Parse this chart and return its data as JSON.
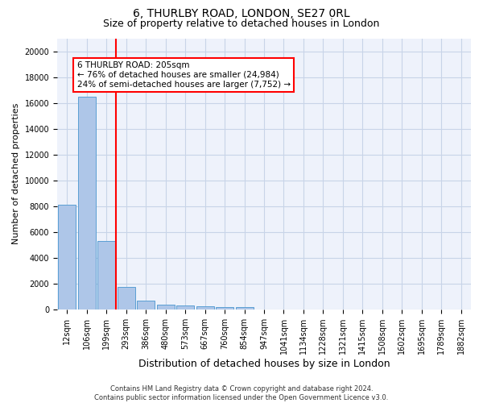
{
  "title1": "6, THURLBY ROAD, LONDON, SE27 0RL",
  "title2": "Size of property relative to detached houses in London",
  "xlabel": "Distribution of detached houses by size in London",
  "ylabel": "Number of detached properties",
  "bar_labels": [
    "12sqm",
    "106sqm",
    "199sqm",
    "293sqm",
    "386sqm",
    "480sqm",
    "573sqm",
    "667sqm",
    "760sqm",
    "854sqm",
    "947sqm",
    "1041sqm",
    "1134sqm",
    "1228sqm",
    "1321sqm",
    "1415sqm",
    "1508sqm",
    "1602sqm",
    "1695sqm",
    "1789sqm",
    "1882sqm"
  ],
  "bar_values": [
    8100,
    16500,
    5300,
    1750,
    650,
    350,
    280,
    230,
    200,
    170,
    0,
    0,
    0,
    0,
    0,
    0,
    0,
    0,
    0,
    0,
    0
  ],
  "bar_color": "#aec6e8",
  "bar_edge_color": "#5a9fd4",
  "vline_color": "red",
  "annotation_box_text": "6 THURLBY ROAD: 205sqm\n← 76% of detached houses are smaller (24,984)\n24% of semi-detached houses are larger (7,752) →",
  "ylim": [
    0,
    21000
  ],
  "yticks": [
    0,
    2000,
    4000,
    6000,
    8000,
    10000,
    12000,
    14000,
    16000,
    18000,
    20000
  ],
  "footer1": "Contains HM Land Registry data © Crown copyright and database right 2024.",
  "footer2": "Contains public sector information licensed under the Open Government Licence v3.0.",
  "bg_color": "#eef2fb",
  "grid_color": "#c8d4e8",
  "title1_fontsize": 10,
  "title2_fontsize": 9,
  "ylabel_fontsize": 8,
  "xlabel_fontsize": 9,
  "tick_fontsize": 7,
  "annot_fontsize": 7.5,
  "footer_fontsize": 6
}
